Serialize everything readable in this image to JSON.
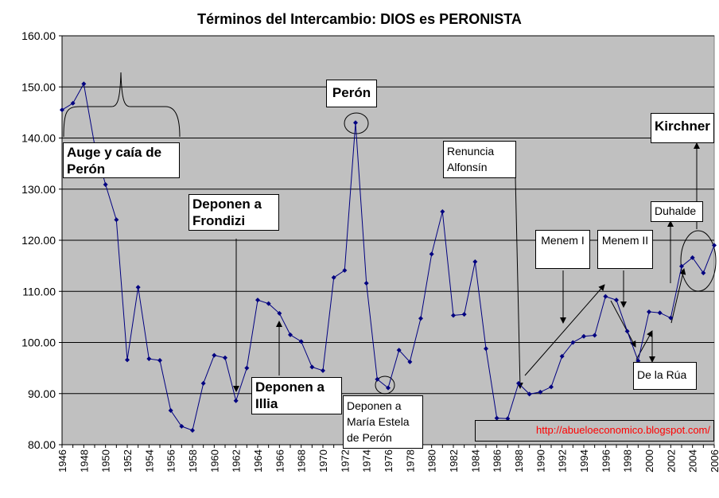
{
  "chart_data": {
    "type": "line",
    "title": "Términos del Intercambio: DIOS es PERONISTA",
    "xlabel": "",
    "ylabel": "",
    "xlim": [
      1946,
      2006
    ],
    "ylim": [
      80,
      160
    ],
    "y_ticks": [
      "80.00",
      "90.00",
      "100.00",
      "110.00",
      "120.00",
      "130.00",
      "140.00",
      "150.00",
      "160.00"
    ],
    "x_ticks": [
      "1946",
      "1948",
      "1950",
      "1952",
      "1954",
      "1956",
      "1958",
      "1960",
      "1962",
      "1964",
      "1966",
      "1968",
      "1970",
      "1972",
      "1974",
      "1976",
      "1978",
      "1980",
      "1982",
      "1984",
      "1986",
      "1988",
      "1990",
      "1992",
      "1994",
      "1996",
      "1998",
      "2000",
      "2002",
      "2004",
      "2006"
    ],
    "grid": true,
    "legend": "none",
    "series": [
      {
        "color": "#000080",
        "x": [
          1946,
          1947,
          1948,
          1949,
          1950,
          1951,
          1952,
          1953,
          1954,
          1955,
          1956,
          1957,
          1958,
          1959,
          1960,
          1961,
          1962,
          1963,
          1964,
          1965,
          1966,
          1967,
          1968,
          1969,
          1970,
          1971,
          1972,
          1973,
          1974,
          1975,
          1976,
          1977,
          1978,
          1979,
          1980,
          1981,
          1982,
          1983,
          1984,
          1985,
          1986,
          1987,
          1988,
          1989,
          1990,
          1991,
          1992,
          1993,
          1994,
          1995,
          1996,
          1997,
          1998,
          1999,
          2000,
          2001,
          2002,
          2003,
          2004,
          2005,
          2006
        ],
        "y": [
          145.5,
          146.8,
          150.6,
          138.6,
          130.9,
          124.0,
          96.6,
          110.8,
          96.8,
          96.5,
          86.7,
          83.6,
          82.8,
          92.0,
          97.5,
          97.0,
          88.6,
          95.0,
          108.3,
          107.6,
          105.7,
          101.5,
          100.2,
          95.2,
          94.5,
          112.7,
          114.1,
          143.0,
          111.6,
          92.8,
          91.1,
          98.5,
          96.2,
          104.7,
          117.3,
          125.6,
          105.3,
          105.5,
          115.8,
          98.8,
          85.2,
          85.1,
          92.0,
          89.9,
          90.3,
          91.3,
          97.3,
          100.0,
          101.2,
          101.4,
          109.0,
          108.3,
          102.2,
          96.4,
          106.0,
          105.8,
          104.8,
          114.9,
          116.6,
          113.6,
          119.0
        ]
      }
    ],
    "annotations": [
      {
        "id": "auge",
        "text": "Auge y caía de Perón"
      },
      {
        "id": "peron",
        "text": "Perón"
      },
      {
        "id": "frondizi",
        "text": "Deponen a Frondizi"
      },
      {
        "id": "illia",
        "text": "Deponen a Illia"
      },
      {
        "id": "isabel",
        "text": "Deponen a María Estela de Perón"
      },
      {
        "id": "alfonsin",
        "text": "Renuncia Alfonsín"
      },
      {
        "id": "menem1",
        "text": "Menem I"
      },
      {
        "id": "menem2",
        "text": "Menem II"
      },
      {
        "id": "duhalde",
        "text": "Duhalde"
      },
      {
        "id": "delarua",
        "text": "De la Rúa"
      },
      {
        "id": "kirchner",
        "text": "Kirchner"
      }
    ],
    "source_text": "http://abueloeconomico.blogspot.com/"
  },
  "colors": {
    "plot_background": "#c0c0c0",
    "line": "#000080",
    "grid": "#000000",
    "source_text": "#ff0000"
  }
}
